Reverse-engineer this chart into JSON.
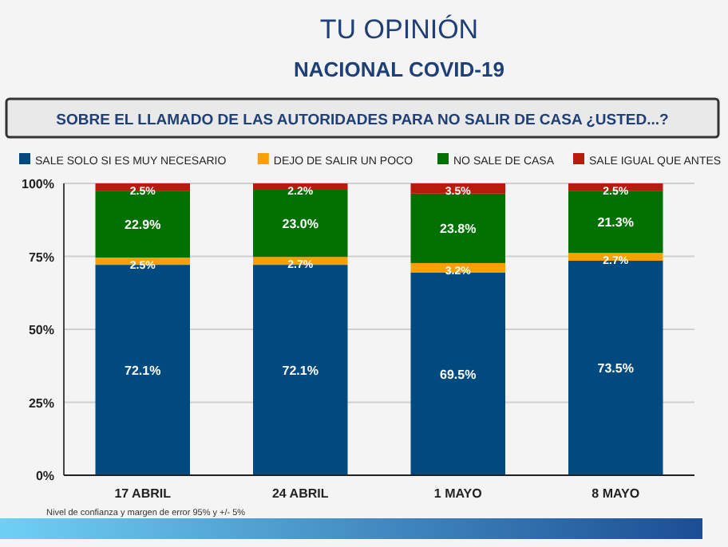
{
  "chart_data": {
    "type": "bar",
    "stacked": true,
    "title": "TU OPINIÓN",
    "subtitle": "NACIONAL COVID-19",
    "annotations": [
      "SOBRE EL LLAMADO DE LAS AUTORIDADES PARA NO SALIR DE CASA ¿USTED...?",
      "Nivel de confianza y margen de error 95% y +/- 5%"
    ],
    "categories": [
      "17 ABRIL",
      "24 ABRIL",
      "1 MAYO",
      "8 MAYO"
    ],
    "series": [
      {
        "name": "SALE SOLO SI ES MUY NECESARIO",
        "color": "#004a80",
        "values": [
          72.1,
          72.1,
          69.5,
          73.5
        ],
        "value_labels": [
          "72.1%",
          "72.1%",
          "69.5%",
          "73.5%"
        ]
      },
      {
        "name": "DEJO DE SALIR UN POCO",
        "color": "#f7a000",
        "values": [
          2.5,
          2.7,
          3.2,
          2.7
        ],
        "value_labels": [
          "2.5%",
          "2.7%",
          "3.2%",
          "2.7%"
        ]
      },
      {
        "name": "NO SALE DE CASA",
        "color": "#007000",
        "values": [
          22.9,
          23.0,
          23.8,
          21.3
        ],
        "value_labels": [
          "22.9%",
          "23.0%",
          "23.8%",
          "21.3%"
        ]
      },
      {
        "name": "SALE IGUAL QUE ANTES",
        "color": "#b81a0c",
        "values": [
          2.5,
          2.2,
          3.5,
          2.5
        ],
        "value_labels": [
          "2.5%",
          "2.2%",
          "3.5%",
          "2.5%"
        ]
      }
    ],
    "ylim": [
      0,
      100
    ],
    "yticks": [
      {
        "value": 0,
        "label": "0%"
      },
      {
        "value": 25,
        "label": "25%"
      },
      {
        "value": 50,
        "label": "50%"
      },
      {
        "value": 75,
        "label": "75%"
      },
      {
        "value": 100,
        "label": "100%"
      }
    ],
    "grid": "y",
    "legend": "top left"
  }
}
